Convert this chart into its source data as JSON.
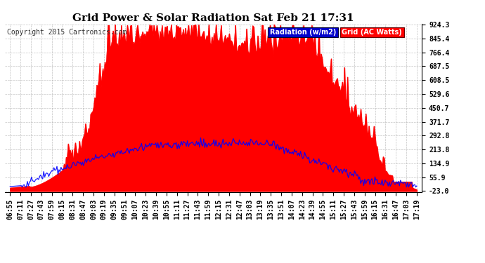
{
  "title": "Grid Power & Solar Radiation Sat Feb 21 17:31",
  "copyright": "Copyright 2015 Cartronics.com",
  "legend_radiation": "Radiation (w/m2)",
  "legend_grid": "Grid (AC Watts)",
  "yticks": [
    924.3,
    845.4,
    766.4,
    687.5,
    608.5,
    529.6,
    450.7,
    371.7,
    292.8,
    213.8,
    134.9,
    55.9,
    -23.0
  ],
  "ymin": -23.0,
  "ymax": 924.3,
  "xtick_labels": [
    "06:55",
    "07:11",
    "07:27",
    "07:43",
    "07:59",
    "08:15",
    "08:31",
    "08:47",
    "09:03",
    "09:19",
    "09:35",
    "09:51",
    "10:07",
    "10:23",
    "10:39",
    "10:55",
    "11:11",
    "11:27",
    "11:43",
    "11:59",
    "12:15",
    "12:31",
    "12:47",
    "13:03",
    "13:19",
    "13:35",
    "13:51",
    "14:07",
    "14:23",
    "14:39",
    "14:55",
    "15:11",
    "15:27",
    "15:43",
    "15:59",
    "16:15",
    "16:31",
    "16:47",
    "17:03",
    "17:19"
  ],
  "n_xticks": 40,
  "n_points": 400,
  "bg_color": "#ffffff",
  "grid_color": "#aaaaaa",
  "fill_color": "#ff0000",
  "line_color": "#0000ff",
  "title_fontsize": 11,
  "axis_fontsize": 7,
  "copyright_fontsize": 7,
  "legend_fontsize": 7
}
